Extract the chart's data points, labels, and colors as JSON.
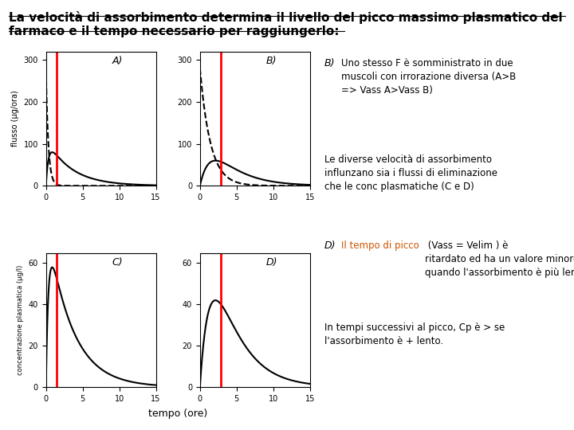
{
  "title_line1": "La velocità di assorbimento determina il livello del picco massimo plasmatico del",
  "title_line2": "farmaco e il tempo necessario per raggiungerlo:",
  "title_fontsize": 11,
  "background_color": "#ffffff",
  "subplot_labels": [
    "A)",
    "B)",
    "C)",
    "D)"
  ],
  "xlabel": "tempo (ore)",
  "ylabel_top": "flusso (μg/ora)",
  "ylabel_bottom": "concentrazione plasmatica (μg/l)",
  "text_B_label": "B)",
  "text_B": "Uno stesso F è somministrato in due\nmuscoli con irrorazione diversa (A>B\n=> Vass A>Vass B)",
  "text_CD1": "Le diverse velocità di assorbimento\ninflunzano sia i flussi di eliminazione\nche le conc plasmatiche (C e D)",
  "text_D_label": "D)",
  "text_D_intro": "Il tempo di picco",
  "text_D_rest": " (Vass = Velim ) è\nritardato ed ha un valore minore\nquando l'assorbimento è più lento (D).",
  "text_D2": "In tempi successivi al picco, Cp è > se\nl'assorbimento è + lento.",
  "red_line_A": 1.5,
  "red_line_B": 2.8,
  "red_line_C": 1.5,
  "red_line_D": 2.8,
  "xlim": [
    0,
    15
  ],
  "ylim_AB": [
    0,
    320
  ],
  "ylim_CD": [
    0,
    65
  ],
  "yticks_A": [
    0,
    100,
    200,
    300
  ],
  "yticks_B": [
    0,
    100,
    200,
    300
  ],
  "yticks_C": [
    0,
    20,
    40,
    60
  ],
  "yticks_D": [
    0,
    20,
    40,
    60
  ],
  "xticks": [
    0,
    5,
    10,
    15
  ],
  "orange_color": "#cc5500"
}
